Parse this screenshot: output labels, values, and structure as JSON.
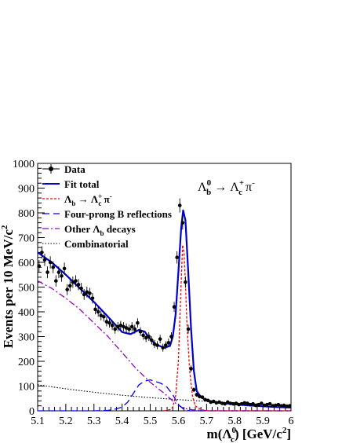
{
  "chart_data": {
    "type": "line",
    "xlabel": "m(Λ_c^0) [GeV/c²]",
    "ylabel": "Events per 10 MeV/c²",
    "xlim": [
      5.1,
      6.0
    ],
    "ylim": [
      0,
      1000
    ],
    "x_ticks": [
      "5.1",
      "5.2",
      "5.3",
      "5.4",
      "5.5",
      "5.6",
      "5.7",
      "5.8",
      "5.9",
      "6"
    ],
    "y_ticks": [
      "0",
      "100",
      "200",
      "300",
      "400",
      "500",
      "600",
      "700",
      "800",
      "900",
      "1000"
    ],
    "annotation": "Λb0 → Λc+ π-",
    "legend": {
      "position": "top-left",
      "entries": [
        {
          "key": "data",
          "label": "Data",
          "color": "#000000",
          "style": "marker"
        },
        {
          "key": "fit",
          "label": "Fit total",
          "color": "#0000cc",
          "style": "solid"
        },
        {
          "key": "signal",
          "label": "Λb → Λc+ π-",
          "color": "#ff0000",
          "style": "dotted"
        },
        {
          "key": "fourprong",
          "label": "Four-prong B reflections",
          "color": "#0000ff",
          "style": "dashed"
        },
        {
          "key": "otherlb",
          "label": "Other Λb decays",
          "color": "#9900cc",
          "style": "dashdot"
        },
        {
          "key": "comb",
          "label": "Combinatorial",
          "color": "#000000",
          "style": "dotted"
        }
      ]
    },
    "data_points": {
      "x": [
        5.105,
        5.115,
        5.125,
        5.135,
        5.145,
        5.155,
        5.165,
        5.175,
        5.185,
        5.195,
        5.205,
        5.215,
        5.225,
        5.235,
        5.245,
        5.255,
        5.265,
        5.275,
        5.285,
        5.295,
        5.305,
        5.315,
        5.325,
        5.335,
        5.345,
        5.355,
        5.365,
        5.375,
        5.385,
        5.395,
        5.405,
        5.415,
        5.425,
        5.435,
        5.445,
        5.455,
        5.465,
        5.475,
        5.485,
        5.495,
        5.505,
        5.515,
        5.525,
        5.535,
        5.545,
        5.555,
        5.565,
        5.575,
        5.585,
        5.595,
        5.605,
        5.615,
        5.625,
        5.635,
        5.645,
        5.655,
        5.665,
        5.675,
        5.685,
        5.695,
        5.705,
        5.715,
        5.725,
        5.735,
        5.745,
        5.755,
        5.765,
        5.775,
        5.785,
        5.795,
        5.805,
        5.815,
        5.825,
        5.835,
        5.845,
        5.855,
        5.865,
        5.875,
        5.885,
        5.895,
        5.905,
        5.915,
        5.925,
        5.935,
        5.945,
        5.955,
        5.965,
        5.975,
        5.985,
        5.995
      ],
      "y": [
        585,
        640,
        610,
        560,
        600,
        580,
        525,
        560,
        545,
        575,
        490,
        505,
        520,
        525,
        510,
        495,
        470,
        480,
        475,
        455,
        410,
        400,
        385,
        380,
        360,
        355,
        345,
        330,
        340,
        345,
        340,
        335,
        330,
        340,
        330,
        355,
        320,
        305,
        295,
        300,
        285,
        270,
        265,
        290,
        255,
        265,
        275,
        300,
        420,
        620,
        830,
        760,
        520,
        330,
        170,
        85,
        65,
        58,
        55,
        45,
        42,
        35,
        38,
        32,
        35,
        30,
        28,
        35,
        30,
        28,
        30,
        25,
        28,
        32,
        30,
        25,
        28,
        22,
        25,
        30,
        22,
        25,
        28,
        20,
        22,
        25,
        20,
        22,
        18,
        20
      ]
    },
    "series": [
      {
        "name": "Fit total",
        "x": [
          5.1,
          5.15,
          5.2,
          5.25,
          5.3,
          5.35,
          5.4,
          5.43,
          5.46,
          5.48,
          5.5,
          5.52,
          5.55,
          5.57,
          5.58,
          5.59,
          5.6,
          5.61,
          5.617,
          5.625,
          5.635,
          5.645,
          5.655,
          5.665,
          5.68,
          5.7,
          5.75,
          5.8,
          5.85,
          5.9,
          5.95,
          6.0
        ],
        "y": [
          640,
          600,
          550,
          495,
          440,
          380,
          318,
          310,
          327,
          320,
          290,
          268,
          255,
          262,
          300,
          390,
          560,
          740,
          810,
          770,
          560,
          330,
          160,
          80,
          55,
          42,
          32,
          26,
          22,
          18,
          15,
          13
        ]
      },
      {
        "name": "Λb → Λc+ π-",
        "x": [
          5.55,
          5.57,
          5.58,
          5.59,
          5.6,
          5.605,
          5.61,
          5.615,
          5.62,
          5.625,
          5.63,
          5.64,
          5.65,
          5.66,
          5.68,
          5.7,
          6.0
        ],
        "y": [
          0,
          5,
          15,
          60,
          200,
          360,
          520,
          670,
          640,
          520,
          360,
          160,
          60,
          20,
          5,
          0,
          0
        ]
      },
      {
        "name": "Four-prong B reflections",
        "x": [
          5.1,
          5.3,
          5.35,
          5.38,
          5.4,
          5.42,
          5.44,
          5.46,
          5.48,
          5.5,
          5.52,
          5.54,
          5.56,
          5.58,
          5.6,
          5.62,
          5.64,
          6.0
        ],
        "y": [
          0,
          0,
          2,
          8,
          15,
          35,
          70,
          105,
          120,
          125,
          118,
          110,
          95,
          65,
          25,
          5,
          0,
          0
        ]
      },
      {
        "name": "Other Λb decays",
        "x": [
          5.1,
          5.15,
          5.2,
          5.25,
          5.3,
          5.35,
          5.4,
          5.45,
          5.5,
          5.55,
          5.58,
          5.6,
          5.62,
          5.65,
          5.7,
          5.75,
          6.0
        ],
        "y": [
          525,
          495,
          455,
          410,
          355,
          300,
          235,
          170,
          115,
          70,
          40,
          22,
          10,
          4,
          1,
          0,
          0
        ]
      },
      {
        "name": "Combinatorial",
        "x": [
          5.1,
          5.2,
          5.3,
          5.4,
          5.5,
          5.6,
          5.7,
          5.8,
          5.9,
          6.0
        ],
        "y": [
          105,
          89,
          75,
          63,
          53,
          45,
          38,
          32,
          27,
          23
        ]
      }
    ]
  }
}
